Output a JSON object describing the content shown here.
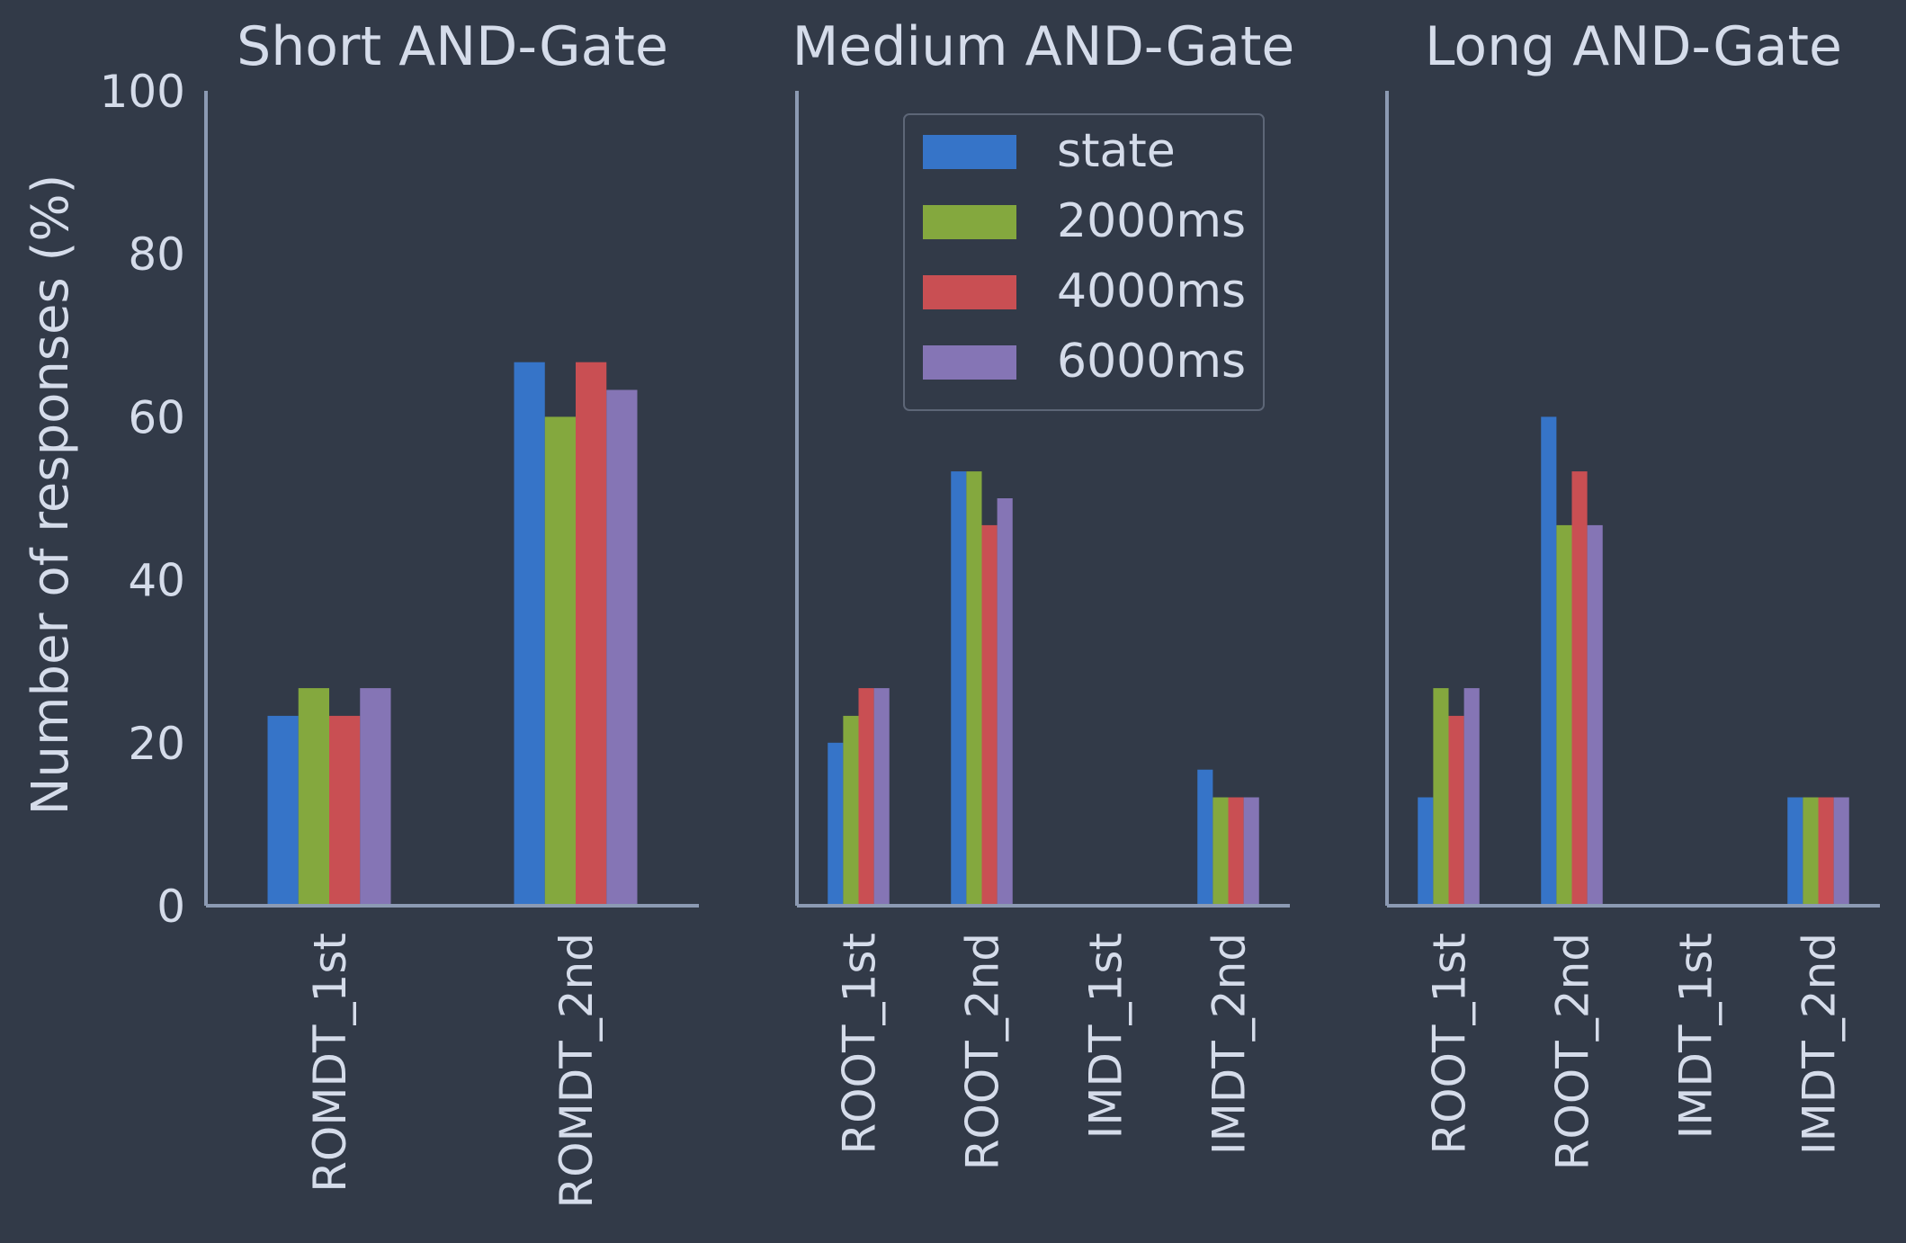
{
  "colors": {
    "background": "#323a48",
    "text": "#d5dcea",
    "axis": "#8c9ab3",
    "state": "#3674c8",
    "2000ms": "#84a83e",
    "4000ms": "#c94f53",
    "6000ms": "#8575b5"
  },
  "chart_data": {
    "type": "bar",
    "ylabel": "Number of responses (%)",
    "ylim": [
      0,
      100
    ],
    "yticks": [
      0,
      20,
      40,
      60,
      80,
      100
    ],
    "legend": {
      "placement": "upper-right of middle panel",
      "entries": [
        "state",
        "2000ms",
        "4000ms",
        "6000ms"
      ]
    },
    "panels": [
      {
        "title": "Short AND-Gate",
        "categories": [
          "ROMDT_1st",
          "ROMDT_2nd"
        ],
        "series": [
          {
            "name": "state",
            "values": [
              23.3,
              66.7
            ]
          },
          {
            "name": "2000ms",
            "values": [
              26.7,
              60.0
            ]
          },
          {
            "name": "4000ms",
            "values": [
              23.3,
              66.7
            ]
          },
          {
            "name": "6000ms",
            "values": [
              26.7,
              63.3
            ]
          }
        ]
      },
      {
        "title": "Medium AND-Gate",
        "categories": [
          "ROOT_1st",
          "ROOT_2nd",
          "IMDT_1st",
          "IMDT_2nd"
        ],
        "series": [
          {
            "name": "state",
            "values": [
              20.0,
              53.3,
              0,
              16.7
            ]
          },
          {
            "name": "2000ms",
            "values": [
              23.3,
              53.3,
              0,
              13.3
            ]
          },
          {
            "name": "4000ms",
            "values": [
              26.7,
              46.7,
              0,
              13.3
            ]
          },
          {
            "name": "6000ms",
            "values": [
              26.7,
              50.0,
              0,
              13.3
            ]
          }
        ]
      },
      {
        "title": "Long AND-Gate",
        "categories": [
          "ROOT_1st",
          "ROOT_2nd",
          "IMDT_1st",
          "IMDT_2nd"
        ],
        "series": [
          {
            "name": "state",
            "values": [
              13.3,
              60.0,
              0,
              13.3
            ]
          },
          {
            "name": "2000ms",
            "values": [
              26.7,
              46.7,
              0,
              13.3
            ]
          },
          {
            "name": "4000ms",
            "values": [
              23.3,
              53.3,
              0,
              13.3
            ]
          },
          {
            "name": "6000ms",
            "values": [
              26.7,
              46.7,
              0,
              13.3
            ]
          }
        ]
      }
    ]
  }
}
